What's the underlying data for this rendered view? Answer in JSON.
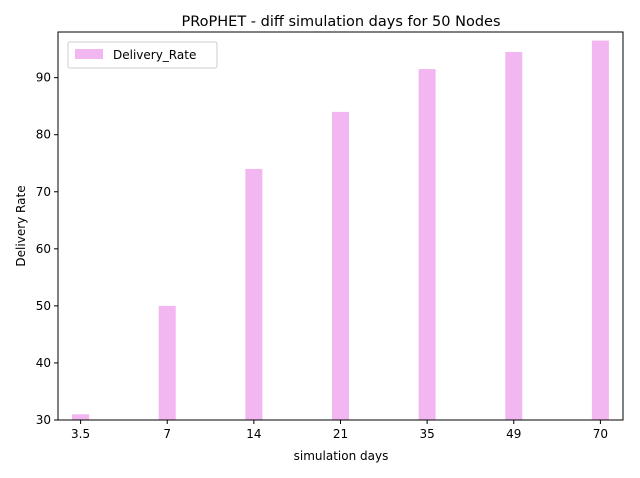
{
  "chart_data": {
    "type": "bar",
    "title": "PRoPHET - diff simulation days for 50 Nodes",
    "xlabel": "simulation days",
    "ylabel": "Delivery Rate",
    "categories": [
      "3.5",
      "7",
      "14",
      "21",
      "35",
      "49",
      "70"
    ],
    "series": [
      {
        "name": "Delivery_Rate",
        "values": [
          31,
          50,
          74,
          84,
          91.5,
          94.5,
          96.5
        ],
        "color": "#f2b6f0"
      }
    ],
    "ylim": [
      30,
      98
    ],
    "yticks": [
      30,
      40,
      50,
      60,
      70,
      80,
      90
    ],
    "grid": false,
    "legend_position": "top-left"
  }
}
